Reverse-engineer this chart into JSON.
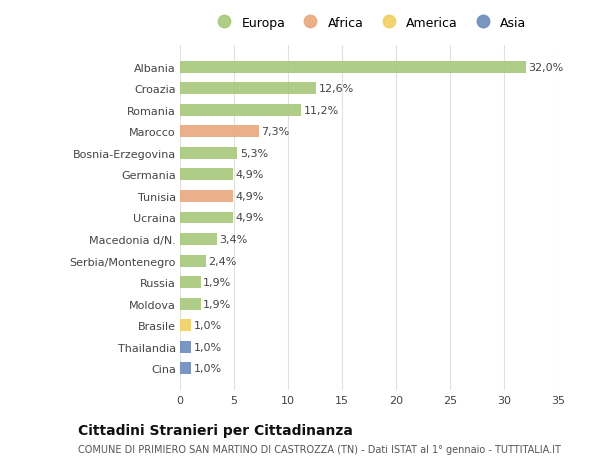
{
  "countries": [
    "Albania",
    "Croazia",
    "Romania",
    "Marocco",
    "Bosnia-Erzegovina",
    "Germania",
    "Tunisia",
    "Ucraina",
    "Macedonia d/N.",
    "Serbia/Montenegro",
    "Russia",
    "Moldova",
    "Brasile",
    "Thailandia",
    "Cina"
  ],
  "values": [
    32.0,
    12.6,
    11.2,
    7.3,
    5.3,
    4.9,
    4.9,
    4.9,
    3.4,
    2.4,
    1.9,
    1.9,
    1.0,
    1.0,
    1.0
  ],
  "labels": [
    "32,0%",
    "12,6%",
    "11,2%",
    "7,3%",
    "5,3%",
    "4,9%",
    "4,9%",
    "4,9%",
    "3,4%",
    "2,4%",
    "1,9%",
    "1,9%",
    "1,0%",
    "1,0%",
    "1,0%"
  ],
  "continents": [
    "Europa",
    "Europa",
    "Europa",
    "Africa",
    "Europa",
    "Europa",
    "Africa",
    "Europa",
    "Europa",
    "Europa",
    "Europa",
    "Europa",
    "America",
    "Asia",
    "Asia"
  ],
  "colors": {
    "Europa": "#a8c87a",
    "Africa": "#e8a87c",
    "America": "#f0d060",
    "Asia": "#6b8cba"
  },
  "title": "Cittadini Stranieri per Cittadinanza",
  "subtitle": "COMUNE DI PRIMIERO SAN MARTINO DI CASTROZZA (TN) - Dati ISTAT al 1° gennaio - TUTTITALIA.IT",
  "xlim": [
    0,
    35
  ],
  "xticks": [
    0,
    5,
    10,
    15,
    20,
    25,
    30,
    35
  ],
  "background_color": "#ffffff",
  "grid_color": "#e0e0e0",
  "bar_height": 0.55,
  "label_fontsize": 8,
  "tick_fontsize": 8,
  "title_fontsize": 10,
  "subtitle_fontsize": 7
}
